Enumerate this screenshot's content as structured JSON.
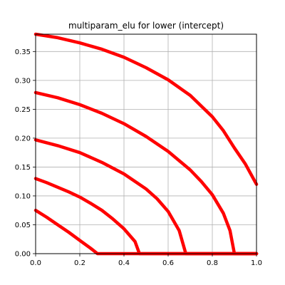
{
  "chart_data": {
    "type": "scatter",
    "title": "multiparam_elu for lower (intercept)",
    "xlabel": "",
    "ylabel": "",
    "xlim": [
      0.0,
      1.0
    ],
    "ylim": [
      0.0,
      0.38
    ],
    "x_ticks": [
      0.0,
      0.2,
      0.4,
      0.6,
      0.8,
      1.0
    ],
    "x_tick_labels": [
      "0.0",
      "0.2",
      "0.4",
      "0.6",
      "0.8",
      "1.0"
    ],
    "y_ticks": [
      0.0,
      0.05,
      0.1,
      0.15,
      0.2,
      0.25,
      0.3,
      0.35
    ],
    "y_tick_labels": [
      "0.00",
      "0.05",
      "0.10",
      "0.15",
      "0.20",
      "0.25",
      "0.30",
      "0.35"
    ],
    "grid": true,
    "legend": "none",
    "series_color": "#ff0000",
    "series": [
      {
        "x": [
          0.0,
          0.05,
          0.1,
          0.15,
          0.2,
          0.25,
          0.28,
          1.0
        ],
        "y": [
          0.075,
          0.063,
          0.05,
          0.037,
          0.023,
          0.009,
          0.0,
          0.0
        ]
      },
      {
        "x": [
          0.0,
          0.05,
          0.1,
          0.15,
          0.2,
          0.25,
          0.3,
          0.35,
          0.4,
          0.45,
          0.47,
          1.0
        ],
        "y": [
          0.13,
          0.123,
          0.115,
          0.107,
          0.098,
          0.087,
          0.075,
          0.06,
          0.043,
          0.021,
          0.0,
          0.0
        ]
      },
      {
        "x": [
          0.0,
          0.1,
          0.2,
          0.3,
          0.4,
          0.5,
          0.55,
          0.6,
          0.65,
          0.68,
          1.0
        ],
        "y": [
          0.197,
          0.187,
          0.175,
          0.158,
          0.138,
          0.112,
          0.095,
          0.073,
          0.04,
          0.0,
          0.0
        ]
      },
      {
        "x": [
          0.0,
          0.1,
          0.2,
          0.3,
          0.4,
          0.5,
          0.6,
          0.7,
          0.75,
          0.8,
          0.85,
          0.88,
          0.9,
          1.0
        ],
        "y": [
          0.279,
          0.27,
          0.258,
          0.243,
          0.225,
          0.203,
          0.177,
          0.145,
          0.125,
          0.102,
          0.07,
          0.04,
          0.0,
          0.0
        ]
      },
      {
        "x": [
          0.0,
          0.1,
          0.2,
          0.3,
          0.4,
          0.5,
          0.6,
          0.7,
          0.8,
          0.85,
          0.9,
          0.95,
          1.0
        ],
        "y": [
          0.38,
          0.374,
          0.365,
          0.354,
          0.34,
          0.322,
          0.301,
          0.274,
          0.237,
          0.213,
          0.183,
          0.155,
          0.12
        ]
      }
    ]
  }
}
